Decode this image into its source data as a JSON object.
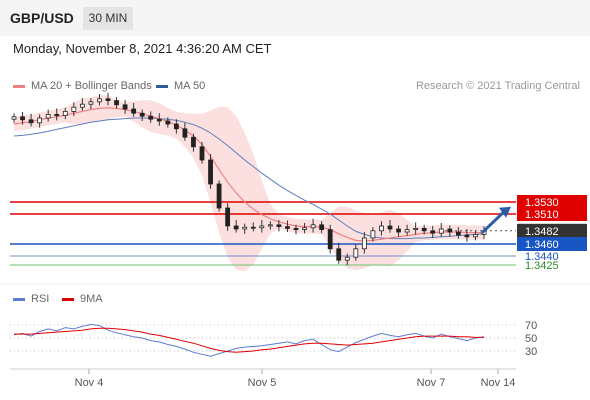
{
  "header": {
    "symbol": "GBP/USD",
    "timeframe": "30 MIN"
  },
  "timestamp": "Monday, November 8, 2021 4:36:20 AM CET",
  "legend_main": [
    {
      "label": "MA 20 + Bollinger Bands",
      "color": "#f08080"
    },
    {
      "label": "MA 50",
      "color": "#2e5b9a"
    }
  ],
  "copyright": "Research © 2021 Trading Central",
  "legend_rsi": [
    {
      "label": "RSI",
      "color": "#5b7bd5"
    },
    {
      "label": "9MA",
      "color": "#e00000"
    }
  ],
  "colors": {
    "resistance": "#e00000",
    "support": "#1a55c4",
    "ma20": "#f08080",
    "band": "#fbd5d5",
    "ma50": "#5b7fc0",
    "gain": "#2a8a2a",
    "last": "#333333"
  },
  "chart_data": [
    {
      "type": "line",
      "title": "",
      "x_ticks": [
        "Nov 4",
        "Nov 5",
        "Nov 7",
        "Nov 14"
      ],
      "ylim": [
        1.34,
        1.37
      ],
      "levels": [
        {
          "value": "1.3530",
          "kind": "resistance"
        },
        {
          "value": "1.3510",
          "kind": "resistance"
        },
        {
          "value": "1.3482",
          "kind": "last"
        },
        {
          "value": "1.3460",
          "kind": "support"
        },
        {
          "value": "1.3440",
          "kind": "support"
        },
        {
          "value": "1.3425",
          "kind": "support"
        }
      ],
      "series": [
        {
          "name": "GBP/USD",
          "values": [
            1.3672,
            1.3667,
            1.3662,
            1.367,
            1.3676,
            1.3674,
            1.3681,
            1.3688,
            1.3693,
            1.3697,
            1.3702,
            1.3699,
            1.3692,
            1.3685,
            1.3678,
            1.3673,
            1.3668,
            1.3665,
            1.366,
            1.3652,
            1.3638,
            1.3622,
            1.36,
            1.356,
            1.352,
            1.349,
            1.3485,
            1.3488,
            1.3487,
            1.349,
            1.3492,
            1.3489,
            1.3486,
            1.3484,
            1.3487,
            1.3492,
            1.3484,
            1.3452,
            1.3433,
            1.3438,
            1.3452,
            1.347,
            1.3482,
            1.349,
            1.3485,
            1.348,
            1.3484,
            1.3486,
            1.3482,
            1.3478,
            1.3485,
            1.348,
            1.3475,
            1.3472,
            1.3476,
            1.3482
          ]
        },
        {
          "name": "MA 20",
          "values": [
            1.366,
            1.3662,
            1.3664,
            1.3667,
            1.367,
            1.3672,
            1.3675,
            1.3678,
            1.3681,
            1.3684,
            1.3686,
            1.3687,
            1.3686,
            1.3684,
            1.3681,
            1.3677,
            1.3673,
            1.3669,
            1.3664,
            1.3658,
            1.365,
            1.364,
            1.3626,
            1.3606,
            1.3584,
            1.3563,
            1.3545,
            1.353,
            1.3518,
            1.3509,
            1.3502,
            1.3497,
            1.3493,
            1.349,
            1.3489,
            1.3489,
            1.3488,
            1.3484,
            1.3477,
            1.3471,
            1.3466,
            1.3465,
            1.3466,
            1.3468,
            1.347,
            1.3472,
            1.3474,
            1.3476,
            1.3478,
            1.3479,
            1.348,
            1.348,
            1.348,
            1.3479,
            1.3479,
            1.3479
          ]
        },
        {
          "name": "MA 50",
          "values": [
            1.364,
            1.3641,
            1.3643,
            1.3645,
            1.3648,
            1.3651,
            1.3654,
            1.3657,
            1.366,
            1.3663,
            1.3665,
            1.3667,
            1.3668,
            1.3669,
            1.367,
            1.367,
            1.367,
            1.3669,
            1.3668,
            1.3666,
            1.3663,
            1.3659,
            1.3653,
            1.3645,
            1.3635,
            1.3624,
            1.3612,
            1.36,
            1.3589,
            1.3578,
            1.3568,
            1.3558,
            1.3549,
            1.3541,
            1.3533,
            1.3526,
            1.3518,
            1.351,
            1.35,
            1.349,
            1.3481,
            1.3476,
            1.3472,
            1.347,
            1.3469,
            1.3469,
            1.3469,
            1.347,
            1.347,
            1.3471,
            1.3472,
            1.3473,
            1.3474,
            1.3475,
            1.3476,
            1.3477
          ]
        }
      ]
    },
    {
      "type": "line",
      "title": "",
      "y_ticks": [
        "70",
        "50",
        "30"
      ],
      "ylim": [
        10,
        90
      ],
      "series": [
        {
          "name": "RSI",
          "values": [
            55,
            57,
            53,
            60,
            64,
            61,
            66,
            64,
            68,
            71,
            69,
            62,
            58,
            55,
            52,
            50,
            46,
            44,
            40,
            37,
            33,
            28,
            25,
            22,
            26,
            30,
            34,
            36,
            37,
            38,
            40,
            42,
            44,
            41,
            46,
            48,
            40,
            32,
            29,
            36,
            43,
            48,
            53,
            57,
            54,
            52,
            55,
            57,
            53,
            50,
            56,
            52,
            49,
            46,
            50,
            52
          ]
        },
        {
          "name": "9MA",
          "values": [
            56,
            56,
            56,
            57,
            58,
            59,
            60,
            61,
            62,
            64,
            65,
            65,
            64,
            63,
            61,
            59,
            56,
            54,
            51,
            48,
            45,
            42,
            38,
            34,
            31,
            29,
            28,
            29,
            30,
            32,
            33,
            35,
            37,
            39,
            41,
            42,
            42,
            41,
            40,
            39,
            40,
            41,
            42,
            44,
            46,
            48,
            50,
            52,
            53,
            53,
            53,
            53,
            52,
            52,
            51,
            51
          ]
        }
      ]
    }
  ]
}
